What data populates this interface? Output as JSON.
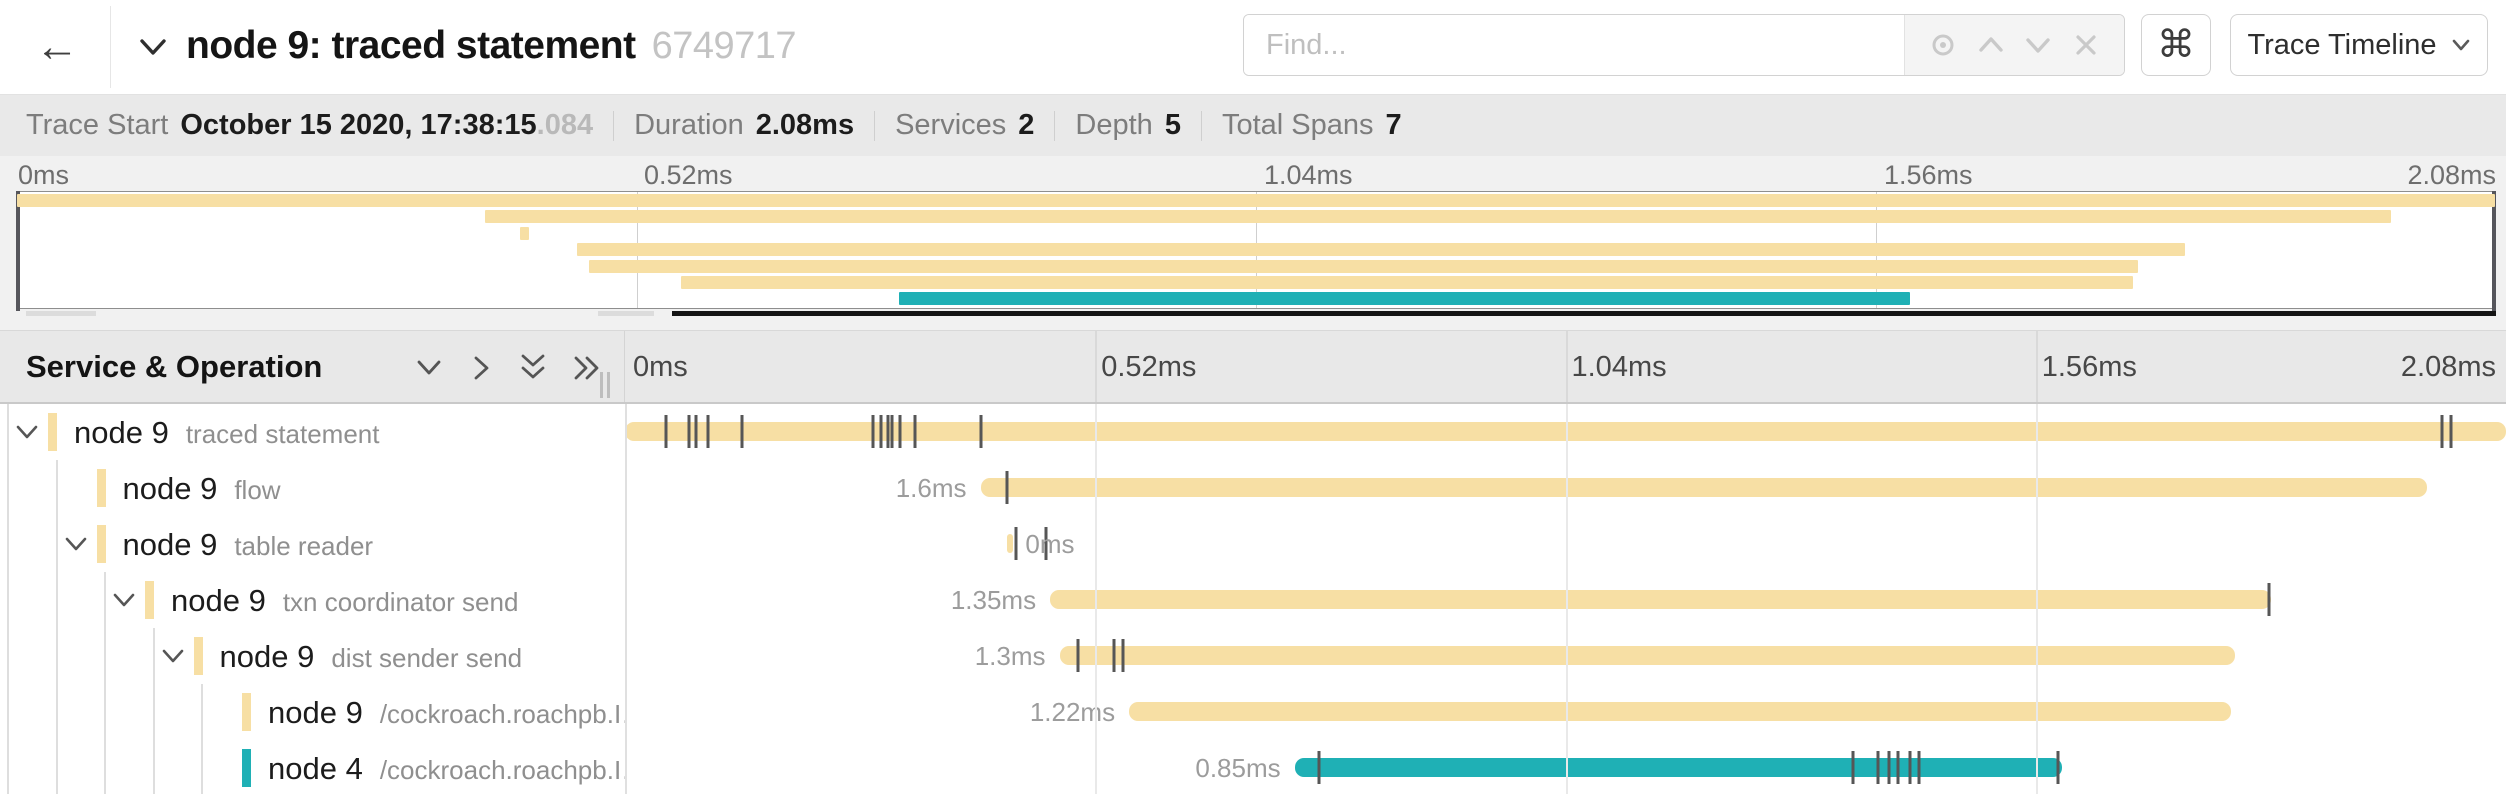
{
  "colors": {
    "tan": "#f7dfa4",
    "teal": "#1fb0b5"
  },
  "header": {
    "back_icon": "←",
    "title": "node 9: traced statement",
    "trace_id": "6749717",
    "find_placeholder": "Find...",
    "shortcut_key": "⌘",
    "view_selector": "Trace Timeline"
  },
  "info_bar": {
    "items": [
      {
        "label": "Trace Start",
        "value": "October 15 2020, 17:38:15",
        "suffix": ".084"
      },
      {
        "label": "Duration",
        "value": "2.08ms",
        "suffix": ""
      },
      {
        "label": "Services",
        "value": "2",
        "suffix": ""
      },
      {
        "label": "Depth",
        "value": "5",
        "suffix": ""
      },
      {
        "label": "Total Spans",
        "value": "7",
        "suffix": ""
      }
    ]
  },
  "minimap": {
    "axis_labels": [
      {
        "text": "0ms",
        "pct": 0,
        "align": "left"
      },
      {
        "text": "0.52ms",
        "pct": 25,
        "align": "left"
      },
      {
        "text": "1.04ms",
        "pct": 50,
        "align": "left"
      },
      {
        "text": "1.56ms",
        "pct": 75,
        "align": "left"
      },
      {
        "text": "2.08ms",
        "pct": 100,
        "align": "right"
      }
    ],
    "gridlines_pct": [
      25,
      50,
      75
    ]
  },
  "timeline": {
    "left_header": "Service & Operation",
    "ruler_labels": [
      {
        "text": "0ms",
        "pct": 0,
        "align": "left"
      },
      {
        "text": "0.52ms",
        "pct": 25,
        "align": "left"
      },
      {
        "text": "1.04ms",
        "pct": 50,
        "align": "left"
      },
      {
        "text": "1.56ms",
        "pct": 75,
        "align": "left"
      },
      {
        "text": "2.08ms",
        "pct": 100,
        "align": "right"
      }
    ],
    "gridlines_pct": [
      25,
      50,
      75
    ],
    "spans": [
      {
        "service": "node 9",
        "operation": "traced statement",
        "depth": 0,
        "has_children": true,
        "expanded": true,
        "color": "tan",
        "start_pct": 0,
        "width_pct": 100,
        "duration_label": "",
        "label_side": "none",
        "ticks_pct": [
          2.2,
          3.4,
          3.8,
          4.4,
          6.2,
          13.2,
          13.6,
          14.0,
          14.2,
          14.6,
          15.4,
          18.9,
          96.6,
          97.1
        ]
      },
      {
        "service": "node 9",
        "operation": "flow",
        "depth": 1,
        "has_children": false,
        "expanded": false,
        "color": "tan",
        "start_pct": 18.9,
        "width_pct": 76.9,
        "duration_label": "1.6ms",
        "label_side": "left",
        "ticks_pct": [
          20.3
        ]
      },
      {
        "service": "node 9",
        "operation": "table reader",
        "depth": 1,
        "has_children": true,
        "expanded": true,
        "color": "tan",
        "start_pct": 20.3,
        "width_pct": 0.35,
        "duration_label": "0ms",
        "label_side": "right",
        "ticks_pct": [
          20.8,
          22.4
        ]
      },
      {
        "service": "node 9",
        "operation": "txn coordinator send",
        "depth": 2,
        "has_children": true,
        "expanded": true,
        "color": "tan",
        "start_pct": 22.6,
        "width_pct": 64.9,
        "duration_label": "1.35ms",
        "label_side": "left",
        "ticks_pct": [
          87.4
        ]
      },
      {
        "service": "node 9",
        "operation": "dist sender send",
        "depth": 3,
        "has_children": true,
        "expanded": true,
        "color": "tan",
        "start_pct": 23.1,
        "width_pct": 62.5,
        "duration_label": "1.3ms",
        "label_side": "left",
        "ticks_pct": [
          24.1,
          26.0,
          26.5
        ]
      },
      {
        "service": "node 9",
        "operation": "/cockroach.roachpb.I…",
        "depth": 4,
        "has_children": false,
        "expanded": false,
        "color": "tan",
        "start_pct": 26.8,
        "width_pct": 58.6,
        "duration_label": "1.22ms",
        "label_side": "left",
        "ticks_pct": []
      },
      {
        "service": "node 4",
        "operation": "/cockroach.roachpb.I…",
        "depth": 4,
        "has_children": false,
        "expanded": false,
        "color": "teal",
        "start_pct": 35.6,
        "width_pct": 40.8,
        "duration_label": "0.85ms",
        "label_side": "left",
        "ticks_pct": [
          36.9,
          65.3,
          66.6,
          67.2,
          67.7,
          68.3,
          68.8,
          76.2
        ]
      }
    ]
  }
}
